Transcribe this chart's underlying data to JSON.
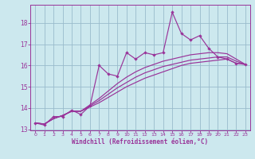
{
  "xlabel": "Windchill (Refroidissement éolien,°C)",
  "bg_color": "#cce8ee",
  "line_color": "#993399",
  "grid_color": "#99bbcc",
  "x_values": [
    0,
    1,
    2,
    3,
    4,
    5,
    6,
    7,
    8,
    9,
    10,
    11,
    12,
    13,
    14,
    15,
    16,
    17,
    18,
    19,
    20,
    21,
    22,
    23
  ],
  "y_main": [
    13.3,
    13.2,
    13.6,
    13.6,
    13.9,
    13.7,
    14.1,
    16.0,
    15.6,
    15.5,
    16.6,
    16.3,
    16.6,
    16.5,
    16.6,
    18.5,
    17.5,
    17.2,
    17.4,
    16.8,
    16.4,
    16.3,
    16.1,
    16.05
  ],
  "y_smooth1": [
    13.3,
    13.25,
    13.5,
    13.65,
    13.85,
    13.85,
    14.05,
    14.25,
    14.5,
    14.75,
    15.0,
    15.2,
    15.4,
    15.55,
    15.7,
    15.85,
    16.0,
    16.1,
    16.15,
    16.2,
    16.25,
    16.3,
    16.1,
    16.05
  ],
  "y_smooth2": [
    13.3,
    13.25,
    13.5,
    13.65,
    13.85,
    13.85,
    14.1,
    14.35,
    14.65,
    14.95,
    15.2,
    15.45,
    15.65,
    15.8,
    15.95,
    16.05,
    16.15,
    16.25,
    16.3,
    16.35,
    16.4,
    16.4,
    16.2,
    16.05
  ],
  "y_smooth3": [
    13.3,
    13.25,
    13.5,
    13.65,
    13.85,
    13.85,
    14.15,
    14.45,
    14.8,
    15.15,
    15.45,
    15.7,
    15.9,
    16.05,
    16.2,
    16.3,
    16.4,
    16.5,
    16.55,
    16.6,
    16.6,
    16.55,
    16.3,
    16.05
  ],
  "ylim": [
    12.95,
    18.85
  ],
  "xlim": [
    -0.5,
    23.5
  ],
  "yticks": [
    13,
    14,
    15,
    16,
    17,
    18
  ],
  "xticks": [
    0,
    1,
    2,
    3,
    4,
    5,
    6,
    7,
    8,
    9,
    10,
    11,
    12,
    13,
    14,
    15,
    16,
    17,
    18,
    19,
    20,
    21,
    22,
    23
  ]
}
